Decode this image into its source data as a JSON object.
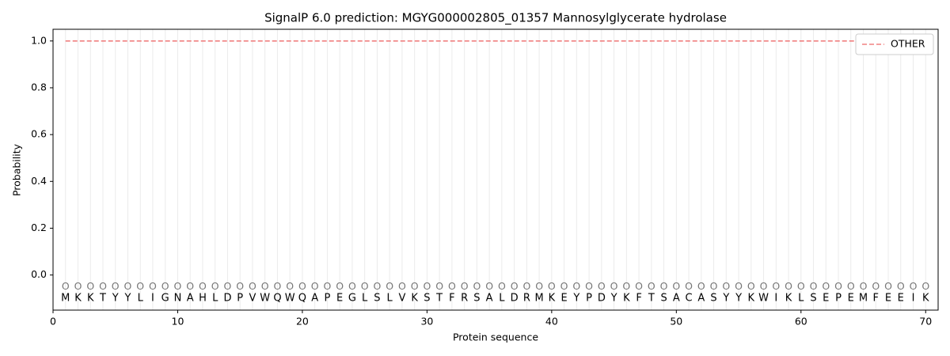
{
  "chart_data": {
    "type": "line",
    "title": "SignalP 6.0 prediction: MGYG000002805_01357 Mannosylglycerate hydrolase",
    "xlabel": "Protein sequence",
    "ylabel": "Probability",
    "x": [
      1,
      2,
      3,
      4,
      5,
      6,
      7,
      8,
      9,
      10,
      11,
      12,
      13,
      14,
      15,
      16,
      17,
      18,
      19,
      20,
      21,
      22,
      23,
      24,
      25,
      26,
      27,
      28,
      29,
      30,
      31,
      32,
      33,
      34,
      35,
      36,
      37,
      38,
      39,
      40,
      41,
      42,
      43,
      44,
      45,
      46,
      47,
      48,
      49,
      50,
      51,
      52,
      53,
      54,
      55,
      56,
      57,
      58,
      59,
      60,
      61,
      62,
      63,
      64,
      65,
      66,
      67,
      68,
      69,
      70
    ],
    "sequence": [
      "M",
      "K",
      "K",
      "T",
      "Y",
      "Y",
      "L",
      "I",
      "G",
      "N",
      "A",
      "H",
      "L",
      "D",
      "P",
      "V",
      "W",
      "Q",
      "W",
      "Q",
      "A",
      "P",
      "E",
      "G",
      "L",
      "S",
      "L",
      "V",
      "K",
      "S",
      "T",
      "F",
      "R",
      "S",
      "A",
      "L",
      "D",
      "R",
      "M",
      "K",
      "E",
      "Y",
      "P",
      "D",
      "Y",
      "K",
      "F",
      "T",
      "S",
      "A",
      "C",
      "A",
      "S",
      "Y",
      "Y",
      "K",
      "W",
      "I",
      "K",
      "L",
      "S",
      "E",
      "P",
      "E",
      "M",
      "F",
      "E",
      "E",
      "I",
      "K"
    ],
    "position_labels": [
      "O",
      "O",
      "O",
      "O",
      "O",
      "O",
      "O",
      "O",
      "O",
      "O",
      "O",
      "O",
      "O",
      "O",
      "O",
      "O",
      "O",
      "O",
      "O",
      "O",
      "O",
      "O",
      "O",
      "O",
      "O",
      "O",
      "O",
      "O",
      "O",
      "O",
      "O",
      "O",
      "O",
      "O",
      "O",
      "O",
      "O",
      "O",
      "O",
      "O",
      "O",
      "O",
      "O",
      "O",
      "O",
      "O",
      "O",
      "O",
      "O",
      "O",
      "O",
      "O",
      "O",
      "O",
      "O",
      "O",
      "O",
      "O",
      "O",
      "O",
      "O",
      "O",
      "O",
      "O",
      "O",
      "O",
      "O",
      "O",
      "O",
      "O"
    ],
    "series": [
      {
        "name": "OTHER",
        "color": "#f08080",
        "values": [
          1,
          1,
          1,
          1,
          1,
          1,
          1,
          1,
          1,
          1,
          1,
          1,
          1,
          1,
          1,
          1,
          1,
          1,
          1,
          1,
          1,
          1,
          1,
          1,
          1,
          1,
          1,
          1,
          1,
          1,
          1,
          1,
          1,
          1,
          1,
          1,
          1,
          1,
          1,
          1,
          1,
          1,
          1,
          1,
          1,
          1,
          1,
          1,
          1,
          1,
          1,
          1,
          1,
          1,
          1,
          1,
          1,
          1,
          1,
          1,
          1,
          1,
          1,
          1,
          1,
          1,
          1,
          1,
          1,
          1
        ]
      }
    ],
    "xlim": [
      0,
      71
    ],
    "ylim": [
      -0.15,
      1.05
    ],
    "xticks": [
      0,
      10,
      20,
      30,
      40,
      50,
      60,
      70
    ],
    "yticks": [
      {
        "value": 0,
        "label": "0.0"
      },
      {
        "value": 0.2,
        "label": "0.2"
      },
      {
        "value": 0.4,
        "label": "0.4"
      },
      {
        "value": 0.6,
        "label": "0.6"
      },
      {
        "value": 0.8,
        "label": "0.8"
      },
      {
        "value": 1,
        "label": "1.0"
      }
    ],
    "legend": "upper right"
  }
}
